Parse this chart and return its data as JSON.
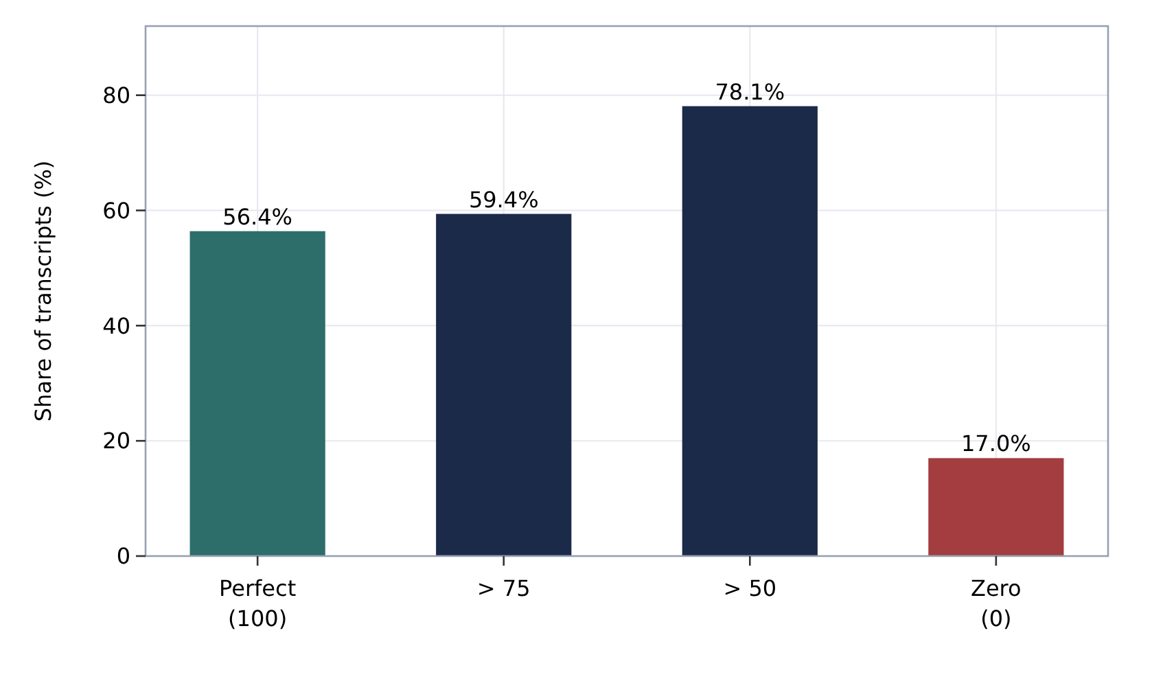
{
  "chart_data": {
    "type": "bar",
    "ylabel": "Share of transcripts (%)",
    "categories": [
      "Perfect\n(100)",
      "> 75",
      "> 50",
      "Zero\n(0)"
    ],
    "values": [
      56.4,
      59.4,
      78.1,
      17.0
    ],
    "colors": [
      "#2e6e6a",
      "#1b2a48",
      "#1b2a48",
      "#a33d40"
    ],
    "value_labels": [
      "56.4%",
      "59.4%",
      "78.1%",
      "17.0%"
    ],
    "ylim": [
      0,
      92
    ],
    "yticks": [
      0,
      20,
      40,
      60,
      80
    ],
    "grid": true
  }
}
